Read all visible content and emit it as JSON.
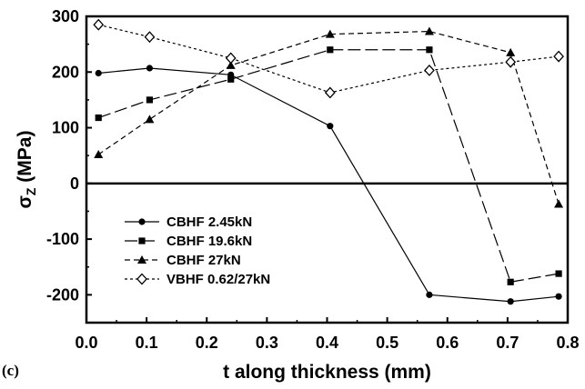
{
  "panel_label": "(c)",
  "chart_data": {
    "type": "line",
    "xlabel": "t along thickness (mm)",
    "ylabel_main": "σ",
    "ylabel_sub": "Z",
    "ylabel_unit": " (MPa)",
    "xlim": [
      0.0,
      0.8
    ],
    "ylim": [
      -250,
      300
    ],
    "xticks": [
      "0.0",
      "0.1",
      "0.2",
      "0.3",
      "0.4",
      "0.5",
      "0.6",
      "0.7",
      "0.8"
    ],
    "yticks": [
      "300",
      "200",
      "100",
      "0",
      "-100",
      "-200"
    ],
    "legend_position": "lower-left",
    "grid": false,
    "series": [
      {
        "name": "CBHF 2.45kN",
        "marker": "circle",
        "dash": "solid",
        "x": [
          0.02,
          0.105,
          0.24,
          0.405,
          0.57,
          0.705,
          0.785
        ],
        "y": [
          198,
          207,
          195,
          103,
          -200,
          -212,
          -203
        ]
      },
      {
        "name": "CBHF 19.6kN",
        "marker": "square",
        "dash": "longdash",
        "x": [
          0.02,
          0.105,
          0.24,
          0.405,
          0.57,
          0.705,
          0.785
        ],
        "y": [
          118,
          150,
          187,
          240,
          240,
          -177,
          -162
        ]
      },
      {
        "name": "CBHF 27kN",
        "marker": "triangle",
        "dash": "dashed",
        "x": [
          0.02,
          0.105,
          0.24,
          0.405,
          0.57,
          0.705,
          0.785
        ],
        "y": [
          52,
          115,
          212,
          268,
          273,
          235,
          -37
        ]
      },
      {
        "name": "VBHF 0.62/27kN",
        "marker": "diamond",
        "dash": "dotted",
        "x": [
          0.02,
          0.105,
          0.24,
          0.405,
          0.57,
          0.705,
          0.785
        ],
        "y": [
          285,
          263,
          225,
          163,
          203,
          218,
          228
        ]
      }
    ]
  }
}
